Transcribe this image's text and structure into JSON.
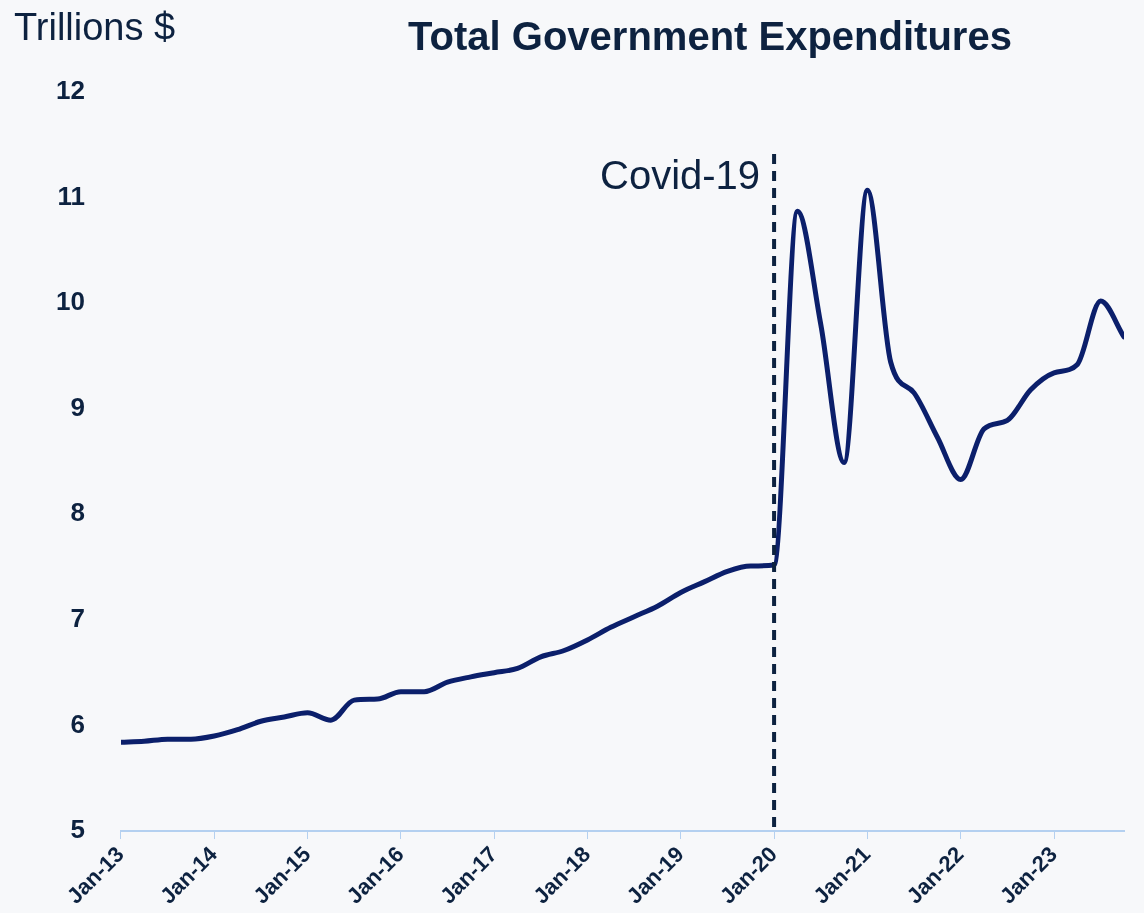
{
  "chart_data": {
    "type": "line",
    "title": "Total Government Expenditures",
    "ylabel": "Trillions $",
    "x": [
      "2013-01",
      "2013-04",
      "2013-07",
      "2013-10",
      "2014-01",
      "2014-04",
      "2014-07",
      "2014-10",
      "2015-01",
      "2015-04",
      "2015-07",
      "2015-10",
      "2016-01",
      "2016-04",
      "2016-07",
      "2016-10",
      "2017-01",
      "2017-04",
      "2017-07",
      "2017-10",
      "2018-01",
      "2018-04",
      "2018-07",
      "2018-10",
      "2019-01",
      "2019-04",
      "2019-07",
      "2019-10",
      "2020-01",
      "2020-04",
      "2020-07",
      "2020-10",
      "2021-01",
      "2021-04",
      "2021-07",
      "2021-10",
      "2022-01",
      "2022-04",
      "2022-07",
      "2022-10",
      "2023-01",
      "2023-04",
      "2023-07",
      "2023-10"
    ],
    "series": [
      {
        "color": "#0b1f6b",
        "values": [
          5.84,
          5.85,
          5.87,
          5.87,
          5.9,
          5.96,
          6.04,
          6.08,
          6.12,
          6.05,
          6.24,
          6.25,
          6.32,
          6.32,
          6.41,
          6.46,
          6.5,
          6.54,
          6.65,
          6.71,
          6.81,
          6.93,
          7.03,
          7.13,
          7.26,
          7.36,
          7.46,
          7.51,
          7.52,
          10.87,
          9.8,
          8.49,
          11.07,
          9.44,
          9.15,
          8.73,
          8.33,
          8.81,
          8.89,
          9.18,
          9.34,
          9.42,
          10.02,
          9.68
        ]
      }
    ],
    "xlim": [
      "2013-01",
      "2023-10"
    ],
    "xticks": [
      {
        "value": "2013-01",
        "label": "Jan-13"
      },
      {
        "value": "2014-01",
        "label": "Jan-14"
      },
      {
        "value": "2015-01",
        "label": "Jan-15"
      },
      {
        "value": "2016-01",
        "label": "Jan-16"
      },
      {
        "value": "2017-01",
        "label": "Jan-17"
      },
      {
        "value": "2018-01",
        "label": "Jan-18"
      },
      {
        "value": "2019-01",
        "label": "Jan-19"
      },
      {
        "value": "2020-01",
        "label": "Jan-20"
      },
      {
        "value": "2021-01",
        "label": "Jan-21"
      },
      {
        "value": "2022-01",
        "label": "Jan-22"
      },
      {
        "value": "2023-01",
        "label": "Jan-23"
      }
    ],
    "ylim": [
      5,
      12
    ],
    "yticks": [
      5,
      6,
      7,
      8,
      9,
      10,
      11,
      12
    ],
    "ref_lines": [
      {
        "axis": "x",
        "value": "2020-01",
        "label": "Covid-19",
        "color": "#0d2240",
        "line_style": "dashed"
      }
    ],
    "grid": false,
    "legend": false,
    "marker": "none",
    "line_style": "solid"
  }
}
